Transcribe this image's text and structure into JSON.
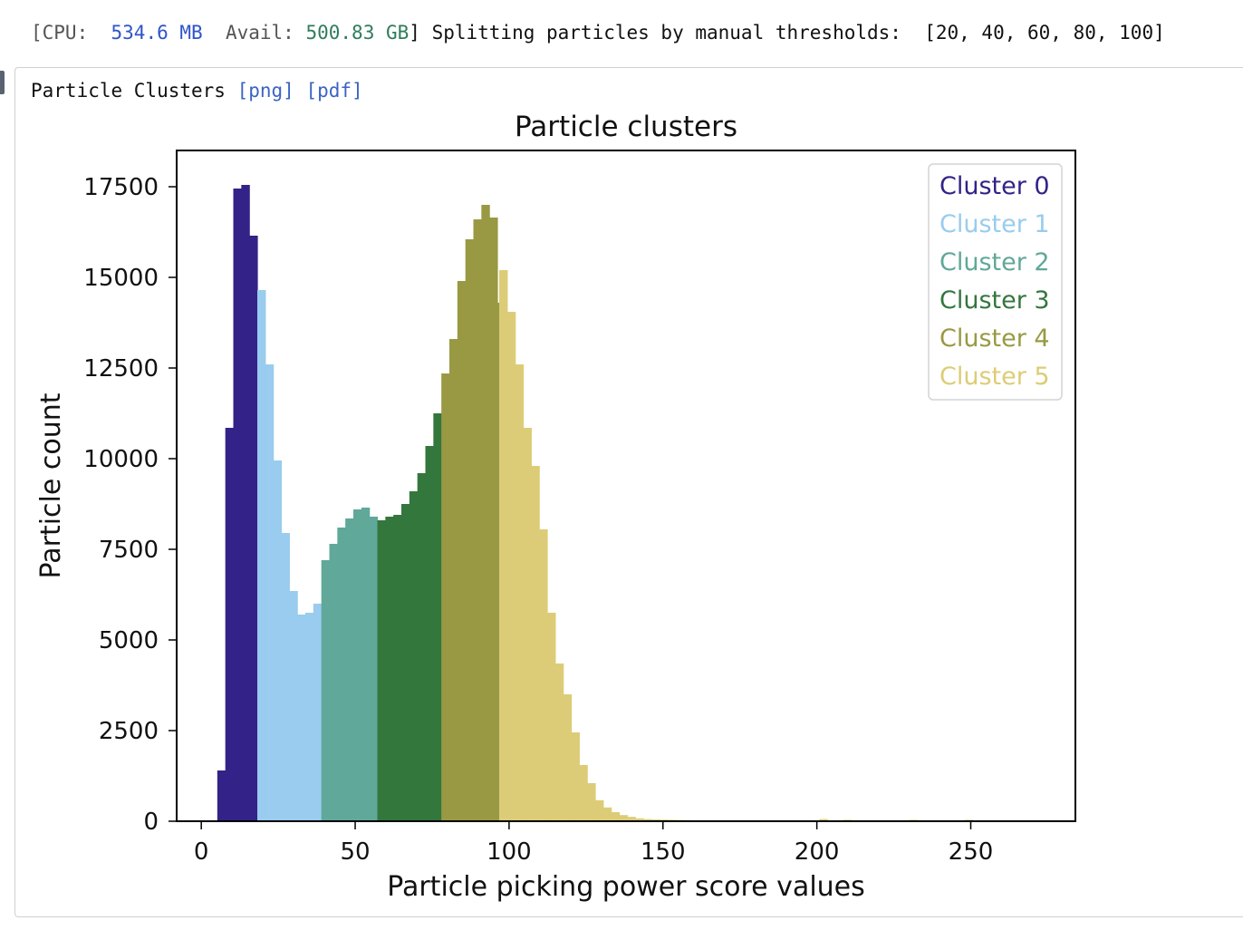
{
  "log": {
    "cpu_label": "[CPU:",
    "cpu_value": "534.6 MB",
    "avail_label": "Avail:",
    "avail_value": "500.83 GB",
    "message": "] Splitting particles by manual thresholds:  [20, 40, 60, 80, 100]"
  },
  "output": {
    "title": "Particle Clusters",
    "png_link": "[png]",
    "pdf_link": "[pdf]"
  },
  "colors": {
    "cluster0": "#332288",
    "cluster1": "#99ccee",
    "cluster2": "#60a899",
    "cluster3": "#33773d",
    "cluster4": "#999944",
    "cluster5": "#ddcc77"
  },
  "chart_data": {
    "type": "bar",
    "title": "Particle clusters",
    "xlabel": "Particle picking power score values",
    "ylabel": "Particle count",
    "xlim": [
      -8,
      284
    ],
    "ylim": [
      0,
      18500
    ],
    "xticks": [
      0,
      50,
      100,
      150,
      200,
      250
    ],
    "yticks": [
      0,
      2500,
      5000,
      7500,
      10000,
      12500,
      15000,
      17500
    ],
    "bin_width": 2.6,
    "bin_start": 5.2,
    "legend_position": "top-right",
    "series": [
      {
        "name": "Cluster 0",
        "color": "#332288",
        "x": [
          5.2,
          7.8,
          10.4,
          13.0,
          15.6
        ],
        "values": [
          1400,
          10850,
          17450,
          17550,
          16150
        ]
      },
      {
        "name": "Cluster 1",
        "color": "#99ccee",
        "x": [
          18.2,
          20.8,
          23.4,
          26.0,
          28.6,
          31.2,
          33.8,
          36.4
        ],
        "values": [
          14650,
          12600,
          9950,
          7950,
          6350,
          5700,
          5750,
          6000
        ]
      },
      {
        "name": "Cluster 2",
        "color": "#60a899",
        "x": [
          39.0,
          41.6,
          44.2,
          46.8,
          49.4,
          52.0,
          54.6
        ],
        "values": [
          7200,
          7650,
          8100,
          8350,
          8600,
          8650,
          8400
        ]
      },
      {
        "name": "Cluster 3",
        "color": "#33773d",
        "x": [
          57.2,
          59.8,
          62.4,
          65.0,
          67.6,
          70.2,
          72.8,
          75.4
        ],
        "values": [
          8300,
          8400,
          8450,
          8750,
          9100,
          9600,
          10350,
          11250
        ]
      },
      {
        "name": "Cluster 4",
        "color": "#999944",
        "x": [
          78.0,
          80.6,
          83.2,
          85.8,
          88.4,
          91.0,
          93.6,
          96.2
        ],
        "values": [
          12350,
          13300,
          14900,
          16050,
          16600,
          17000,
          16650,
          14300
        ]
      },
      {
        "name": "Cluster 5",
        "color": "#ddcc77",
        "x": [
          96.8,
          99.4,
          102.0,
          104.6,
          107.2,
          109.8,
          112.4,
          115.0,
          117.6,
          120.2,
          122.8,
          125.4,
          128.0,
          130.6,
          133.2,
          135.8,
          138.4,
          141.0,
          143.6,
          146.2,
          148.8,
          151.4,
          154.0,
          156.6,
          159.2,
          161.8,
          164.4,
          167.0,
          169.6,
          172.2,
          174.8,
          177.4,
          180.0,
          182.6,
          185.2,
          187.8,
          190.4,
          193.0,
          195.6,
          198.2,
          200.8,
          203.4,
          206.0,
          208.6,
          211.2,
          230.0,
          248.0
        ],
        "values": [
          15200,
          14050,
          12600,
          10850,
          9800,
          8050,
          5750,
          4350,
          3500,
          2450,
          1550,
          1050,
          580,
          380,
          250,
          170,
          120,
          80,
          60,
          50,
          45,
          40,
          35,
          30,
          25,
          22,
          20,
          18,
          16,
          15,
          15,
          14,
          13,
          12,
          12,
          11,
          10,
          10,
          10,
          9,
          60,
          8,
          8,
          40,
          8,
          40,
          40
        ]
      }
    ]
  }
}
